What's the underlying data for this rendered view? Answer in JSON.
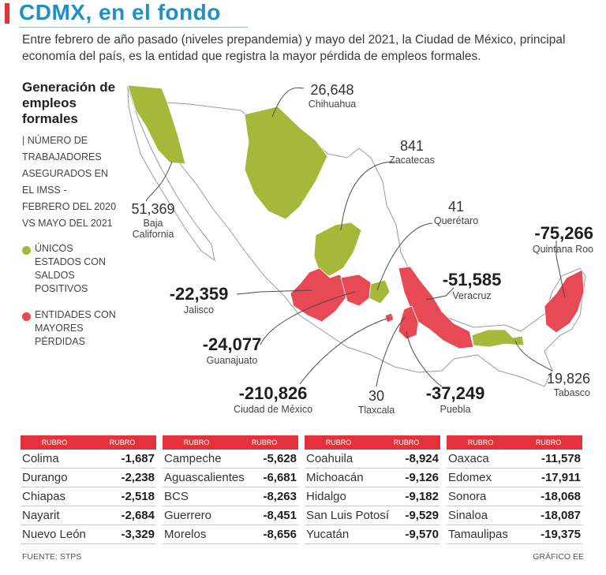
{
  "header": {
    "title": "CDMX, en el fondo",
    "subtitle": "Entre febrero de año pasado (niveles prepandemia) y mayo del 2021, la Ciudad de México, principal economía del país, es la entidad que registra la mayor pérdida de empleos formales."
  },
  "legend": {
    "title": "Generación de empleos formales",
    "description": "| NÚMERO DE TRABAJADORES ASEGURADOS EN EL IMSS - FEBRERO DEL 2020 VS MAYO DEL 2021",
    "positive_label": "ÚNICOS ESTADOS CON SALDOS POSITIVOS",
    "negative_label": "ENTIDADES CON MAYORES PÉRDIDAS",
    "positive_color": "#a6b83a",
    "negative_color": "#e84a55"
  },
  "map_labels": {
    "chihuahua": {
      "value": "26,648",
      "name": "Chihuahua"
    },
    "zacatecas": {
      "value": "841",
      "name": "Zacatecas"
    },
    "queretaro": {
      "value": "41",
      "name": "Querétaro"
    },
    "baja_california": {
      "value": "51,369",
      "name": "Baja California"
    },
    "quintana_roo": {
      "value": "-75,266",
      "name": "Quintana Roo"
    },
    "veracruz": {
      "value": "-51,585",
      "name": "Veracruz"
    },
    "jalisco": {
      "value": "-22,359",
      "name": "Jalisco"
    },
    "guanajuato": {
      "value": "-24,077",
      "name": "Guanajuato"
    },
    "tabasco": {
      "value": "19,826",
      "name": "Tabasco"
    },
    "cdmx": {
      "value": "-210,826",
      "name": "Ciudad de México"
    },
    "tlaxcala": {
      "value": "30",
      "name": "Tlaxcala"
    },
    "puebla": {
      "value": "-37,249",
      "name": "Puebla"
    }
  },
  "tables": [
    {
      "headers": [
        "RUBRO",
        "RUBRO"
      ],
      "rows": [
        [
          "Colima",
          "-1,687"
        ],
        [
          "Durango",
          "-2,238"
        ],
        [
          "Chiapas",
          "-2,518"
        ],
        [
          "Nayarit",
          "-2,684"
        ],
        [
          "Nuevo León",
          "-3,329"
        ]
      ]
    },
    {
      "headers": [
        "RUBRO",
        "RUBRO"
      ],
      "rows": [
        [
          "Campeche",
          "-5,628"
        ],
        [
          "Aguascalientes",
          "-6,681"
        ],
        [
          "BCS",
          "-8,263"
        ],
        [
          "Guerrero",
          "-8,451"
        ],
        [
          "Morelos",
          "-8,656"
        ]
      ]
    },
    {
      "headers": [
        "RUBRO",
        "RUBRO"
      ],
      "rows": [
        [
          "Coahuila",
          "-8,924"
        ],
        [
          "Michoacán",
          "-9,126"
        ],
        [
          "Hidalgo",
          "-9,182"
        ],
        [
          "San Luis Potosí",
          "-9,529"
        ],
        [
          "Yucatán",
          "-9,570"
        ]
      ]
    },
    {
      "headers": [
        "RUBRO",
        "RUBRO"
      ],
      "rows": [
        [
          "Oaxaca",
          "-11,578"
        ],
        [
          "Edomex",
          "-17,911"
        ],
        [
          "Sonora",
          "-18,068"
        ],
        [
          "Sinaloa",
          "-18,087"
        ],
        [
          "Tamaulipas",
          "-19,375"
        ]
      ]
    }
  ],
  "footer": {
    "source": "FUENTE: STPS",
    "credit": "GRÁFICO EE"
  }
}
